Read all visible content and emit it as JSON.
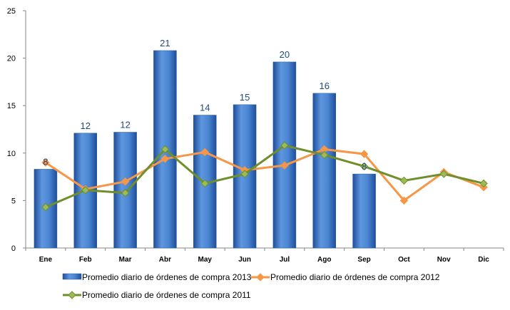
{
  "chart_data": {
    "type": "bar",
    "categories": [
      "Ene",
      "Feb",
      "Mar",
      "Abr",
      "May",
      "Jun",
      "Jul",
      "Ago",
      "Sep",
      "Oct",
      "Nov",
      "Dic"
    ],
    "ylim": [
      0,
      25
    ],
    "yticks": [
      0,
      5,
      10,
      15,
      20,
      25
    ],
    "grid": false,
    "legend_position": "bottom",
    "series": [
      {
        "name": "Promedio diario de órdenes de compra 2013",
        "type": "bar",
        "color": "#3F7CCB",
        "values": [
          8.3,
          12.1,
          12.2,
          20.8,
          14.0,
          15.1,
          19.6,
          16.3,
          7.8,
          null,
          null,
          null
        ],
        "data_labels": [
          "8",
          "12",
          "12",
          "21",
          "14",
          "15",
          "20",
          "16",
          "8",
          "",
          "",
          ""
        ]
      },
      {
        "name": "Promedio diario de órdenes de compra 2012",
        "type": "line",
        "color": "#F79646",
        "marker_color": "#F79646",
        "values": [
          9.0,
          6.2,
          7.0,
          9.4,
          10.1,
          8.2,
          8.7,
          10.4,
          9.9,
          5.0,
          8.0,
          6.4
        ]
      },
      {
        "name": "Promedio diario de órdenes de compra 2011",
        "type": "line",
        "color": "#6F8F2C",
        "marker_color": "#9BBB59",
        "values": [
          4.3,
          6.1,
          5.8,
          10.4,
          6.8,
          7.8,
          10.8,
          9.8,
          8.6,
          7.1,
          7.8,
          6.8
        ]
      }
    ]
  }
}
